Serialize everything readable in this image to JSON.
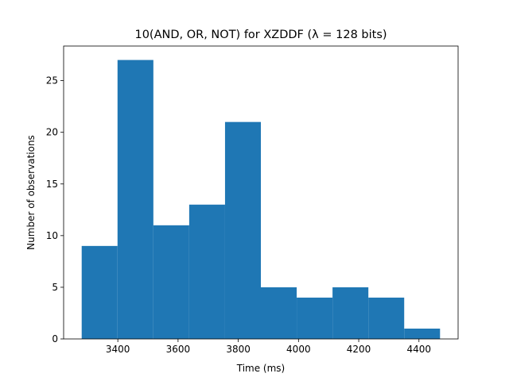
{
  "chart_data": {
    "type": "bar",
    "subtype": "histogram",
    "title": "10(AND, OR, NOT) for XZDDF (λ = 128 bits)",
    "xlabel": "Time (ms)",
    "ylabel": "Number of observations",
    "bin_edges": [
      3280,
      3399,
      3518,
      3637,
      3756,
      3875,
      3994,
      4113,
      4232,
      4351,
      4470
    ],
    "counts": [
      9,
      27,
      11,
      13,
      21,
      5,
      4,
      5,
      4,
      1
    ],
    "xlim": [
      3220,
      4530
    ],
    "ylim": [
      0,
      28.35
    ],
    "xticks": [
      3400,
      3600,
      3800,
      4000,
      4200,
      4400
    ],
    "yticks": [
      0,
      5,
      10,
      15,
      20,
      25
    ],
    "bar_color": "#1f77b4",
    "grid": false,
    "legend": "none"
  }
}
